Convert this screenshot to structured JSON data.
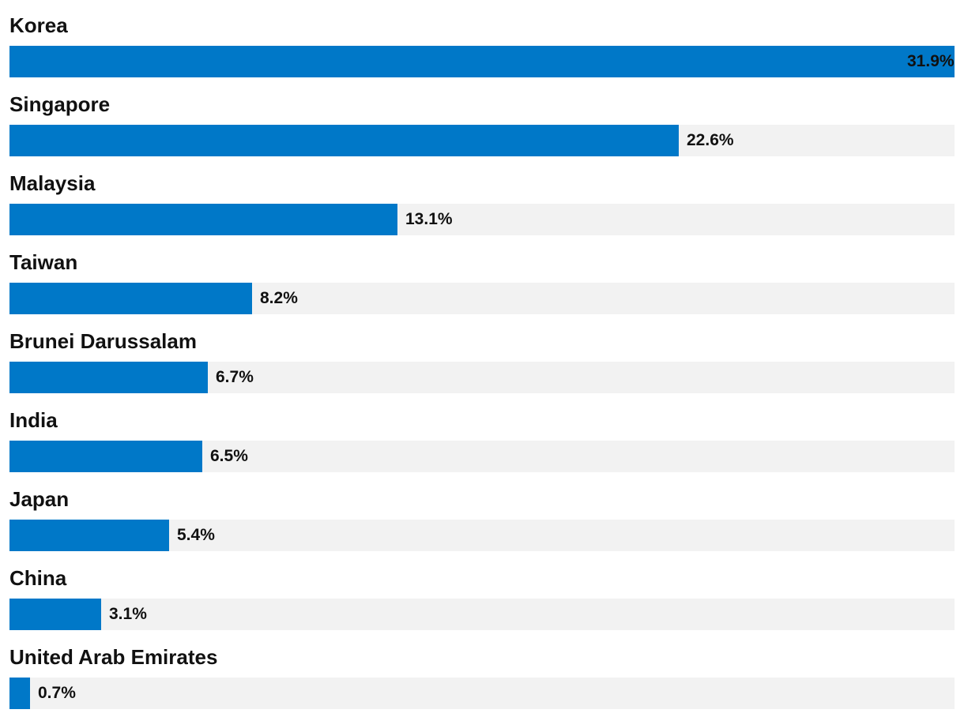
{
  "colors": {
    "bar": "#0078c8",
    "track": "#f2f2f2",
    "text": "#111111"
  },
  "chart_data": {
    "type": "bar",
    "orientation": "horizontal",
    "title": "",
    "xlabel": "",
    "ylabel": "",
    "xlim": [
      0,
      31.9
    ],
    "grid": false,
    "categories": [
      "Korea",
      "Singapore",
      "Malaysia",
      "Taiwan",
      "Brunei Darussalam",
      "India",
      "Japan",
      "China",
      "United Arab Emirates"
    ],
    "values": [
      31.9,
      22.6,
      13.1,
      8.2,
      6.7,
      6.5,
      5.4,
      3.1,
      0.7
    ],
    "value_labels": [
      "31.9%",
      "22.6%",
      "13.1%",
      "8.2%",
      "6.7%",
      "6.5%",
      "5.4%",
      "3.1%",
      "0.7%"
    ]
  }
}
